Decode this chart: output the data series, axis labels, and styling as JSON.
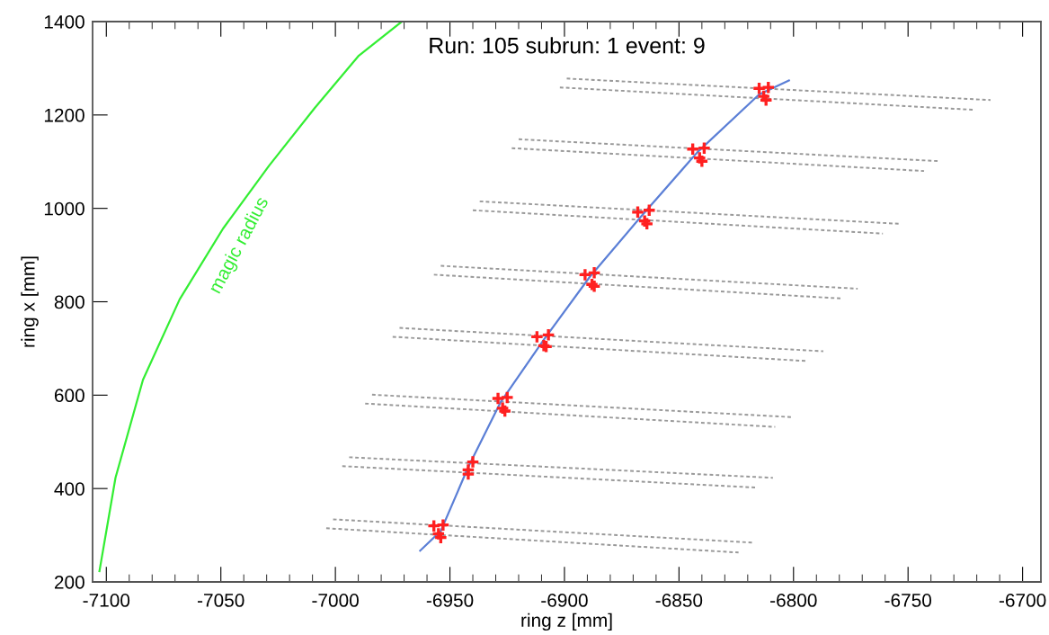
{
  "chart_data": {
    "type": "scatter",
    "title": "Run: 105 subrun: 1 event: 9",
    "xlabel": "ring z [mm]",
    "ylabel": "ring x [mm]",
    "xlim": [
      -7106,
      -6692
    ],
    "ylim": [
      200,
      1400
    ],
    "xticks": [
      -7100,
      -7050,
      -7000,
      -6950,
      -6900,
      -6850,
      -6800,
      -6750,
      -6700
    ],
    "yticks": [
      200,
      400,
      600,
      800,
      1000,
      1200,
      1400
    ],
    "grid": false,
    "annotations": [
      "magic radius"
    ],
    "series": [
      {
        "type": "line",
        "color": "#999999",
        "line_style": "dotted",
        "marker": "none",
        "x": [
          -7001,
          -6817
        ],
        "values": [
          334,
          284
        ]
      },
      {
        "type": "line",
        "color": "#999999",
        "line_style": "dotted",
        "marker": "none",
        "x": [
          -7004,
          -6824
        ],
        "values": [
          315,
          263
        ]
      },
      {
        "type": "line",
        "color": "#999999",
        "line_style": "dotted",
        "marker": "none",
        "x": [
          -6994,
          -6809
        ],
        "values": [
          467,
          423
        ]
      },
      {
        "type": "line",
        "color": "#999999",
        "line_style": "dotted",
        "marker": "none",
        "x": [
          -6997,
          -6816
        ],
        "values": [
          448,
          402
        ]
      },
      {
        "type": "line",
        "color": "#999999",
        "line_style": "dotted",
        "marker": "none",
        "x": [
          -6984,
          -6801
        ],
        "values": [
          601,
          553
        ]
      },
      {
        "type": "line",
        "color": "#999999",
        "line_style": "dotted",
        "marker": "none",
        "x": [
          -6987,
          -6808
        ],
        "values": [
          582,
          532
        ]
      },
      {
        "type": "line",
        "color": "#999999",
        "line_style": "dotted",
        "marker": "none",
        "x": [
          -6972,
          -6787
        ],
        "values": [
          744,
          694
        ]
      },
      {
        "type": "line",
        "color": "#999999",
        "line_style": "dotted",
        "marker": "none",
        "x": [
          -6975,
          -6794
        ],
        "values": [
          725,
          673
        ]
      },
      {
        "type": "line",
        "color": "#999999",
        "line_style": "dotted",
        "marker": "none",
        "x": [
          -6954,
          -6772
        ],
        "values": [
          877,
          828
        ]
      },
      {
        "type": "line",
        "color": "#999999",
        "line_style": "dotted",
        "marker": "none",
        "x": [
          -6957,
          -6779
        ],
        "values": [
          858,
          807
        ]
      },
      {
        "type": "line",
        "color": "#999999",
        "line_style": "dotted",
        "marker": "none",
        "x": [
          -6937,
          -6754
        ],
        "values": [
          1015,
          967
        ]
      },
      {
        "type": "line",
        "color": "#999999",
        "line_style": "dotted",
        "marker": "none",
        "x": [
          -6940,
          -6761
        ],
        "values": [
          996,
          946
        ]
      },
      {
        "type": "line",
        "color": "#999999",
        "line_style": "dotted",
        "marker": "none",
        "x": [
          -6920,
          -6736
        ],
        "values": [
          1148,
          1101
        ]
      },
      {
        "type": "line",
        "color": "#999999",
        "line_style": "dotted",
        "marker": "none",
        "x": [
          -6923,
          -6743
        ],
        "values": [
          1129,
          1080
        ]
      },
      {
        "type": "line",
        "color": "#999999",
        "line_style": "dotted",
        "marker": "none",
        "x": [
          -6899,
          -6714
        ],
        "values": [
          1278,
          1232
        ]
      },
      {
        "type": "line",
        "color": "#999999",
        "line_style": "dotted",
        "marker": "none",
        "x": [
          -6902,
          -6721
        ],
        "values": [
          1259,
          1211
        ]
      },
      {
        "type": "line",
        "color": "#33ee33",
        "line_style": "solid",
        "marker": "none",
        "x": [
          -7103,
          -7096,
          -7084,
          -7068,
          -7049,
          -7029,
          -7009,
          -6990,
          -6971
        ],
        "values": [
          223,
          423,
          633,
          805,
          957,
          1091,
          1215,
          1326,
          1400
        ]
      },
      {
        "type": "line",
        "color": "#5b7fd6",
        "line_style": "solid",
        "marker": "none",
        "x": [
          -6963,
          -6954,
          -6942,
          -6928,
          -6909,
          -6889,
          -6867,
          -6842,
          -6815,
          -6802
        ],
        "values": [
          267,
          309,
          446,
          584,
          719,
          853,
          980,
          1120,
          1244,
          1274
        ]
      },
      {
        "type": "scatter",
        "color": "#ff2020",
        "marker": "cross",
        "x": [
          -6957,
          -6953,
          -6955,
          -6954,
          -6942,
          -6940,
          -6942,
          -6929,
          -6925,
          -6927,
          -6926,
          -6912,
          -6907,
          -6909,
          -6908,
          -6891,
          -6887,
          -6888,
          -6887,
          -6868,
          -6863,
          -6865,
          -6864,
          -6844,
          -6839,
          -6841,
          -6840,
          -6815,
          -6811,
          -6813,
          -6812
        ],
        "values": [
          320,
          322,
          303,
          295,
          440,
          457,
          431,
          593,
          595,
          572,
          566,
          725,
          729,
          706,
          704,
          858,
          862,
          837,
          833,
          992,
          996,
          973,
          967,
          1127,
          1129,
          1108,
          1101,
          1257,
          1259,
          1240,
          1232
        ]
      }
    ]
  }
}
